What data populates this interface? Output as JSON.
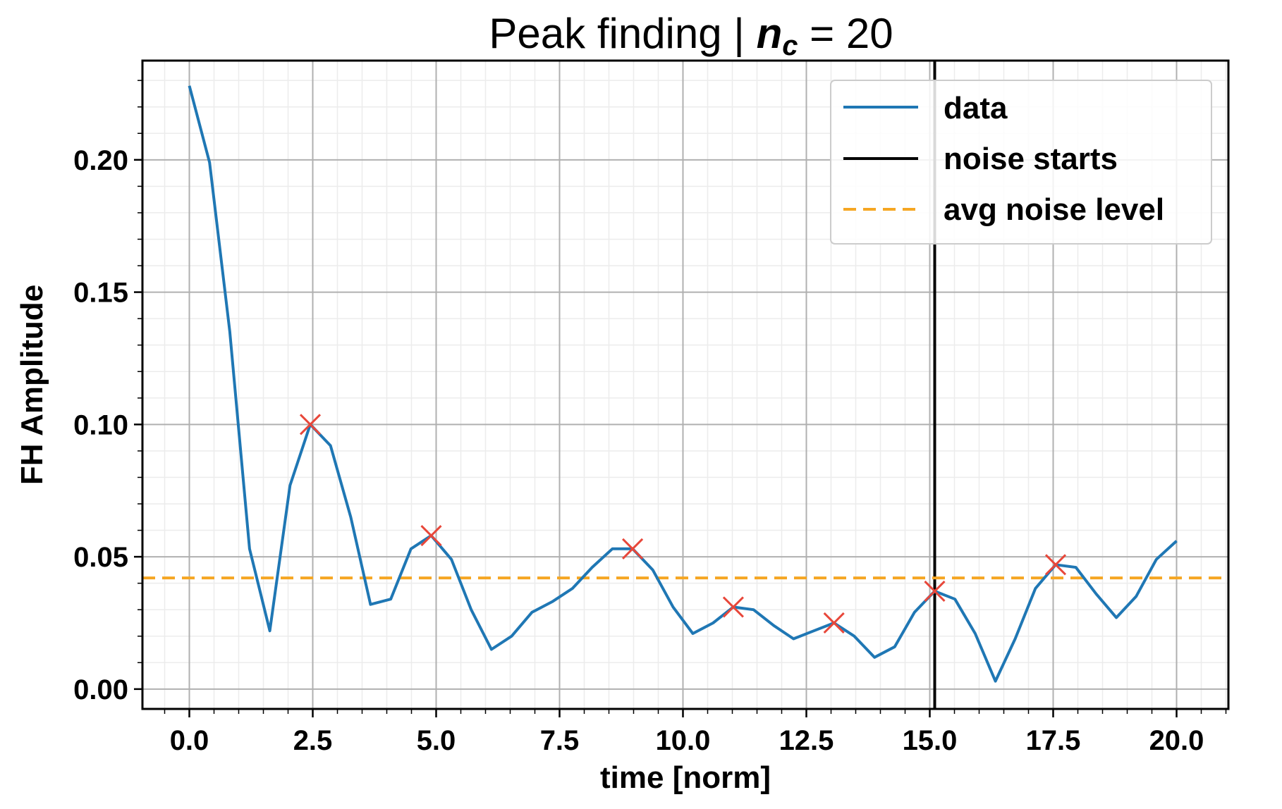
{
  "chart_data": {
    "type": "line",
    "title": "Peak finding | ",
    "title_symbol": "n",
    "title_subscript": "c",
    "title_suffix": " = 20",
    "xlabel": "time [norm]",
    "ylabel": "FH Amplitude",
    "xlim": [
      -0.95,
      21.05
    ],
    "ylim": [
      -0.0075,
      0.2375
    ],
    "xticks": [
      0.0,
      2.5,
      5.0,
      7.5,
      10.0,
      12.5,
      15.0,
      17.5,
      20.0
    ],
    "xtick_labels": [
      "0.0",
      "2.5",
      "5.0",
      "7.5",
      "10.0",
      "12.5",
      "15.0",
      "17.5",
      "20.0"
    ],
    "yticks": [
      0.0,
      0.05,
      0.1,
      0.15,
      0.2
    ],
    "ytick_labels": [
      "0.00",
      "0.05",
      "0.10",
      "0.15",
      "0.20"
    ],
    "grid": true,
    "minor_grid": true,
    "legend_position": "top-right",
    "series": [
      {
        "name": "data",
        "color": "#1f77b4",
        "x": [
          0.0,
          0.41,
          0.82,
          1.22,
          1.63,
          2.04,
          2.45,
          2.86,
          3.27,
          3.67,
          4.08,
          4.49,
          4.9,
          5.31,
          5.71,
          6.12,
          6.53,
          6.94,
          7.35,
          7.76,
          8.16,
          8.57,
          8.98,
          9.39,
          9.8,
          10.2,
          10.61,
          11.02,
          11.43,
          11.84,
          12.24,
          12.65,
          13.06,
          13.47,
          13.88,
          14.29,
          14.69,
          15.1,
          15.51,
          15.92,
          16.33,
          16.73,
          17.14,
          17.55,
          17.96,
          18.37,
          18.78,
          19.18,
          19.59,
          20.0
        ],
        "y": [
          0.228,
          0.199,
          0.135,
          0.053,
          0.022,
          0.077,
          0.1,
          0.092,
          0.065,
          0.032,
          0.034,
          0.053,
          0.058,
          0.049,
          0.03,
          0.015,
          0.02,
          0.029,
          0.033,
          0.038,
          0.046,
          0.053,
          0.053,
          0.045,
          0.031,
          0.021,
          0.025,
          0.031,
          0.03,
          0.024,
          0.019,
          0.022,
          0.025,
          0.02,
          0.012,
          0.016,
          0.029,
          0.037,
          0.034,
          0.021,
          0.003,
          0.019,
          0.038,
          0.047,
          0.046,
          0.036,
          0.027,
          0.035,
          0.049,
          0.056
        ]
      },
      {
        "name": "noise starts",
        "color": "#000000",
        "kind": "vline",
        "x": 15.1
      },
      {
        "name": "avg noise level",
        "color": "#f5a623",
        "kind": "hline",
        "y": 0.042
      }
    ],
    "peaks": {
      "color": "#e8473a",
      "x": [
        2.45,
        4.9,
        8.98,
        11.02,
        13.06,
        15.1,
        17.55
      ],
      "y": [
        0.1,
        0.058,
        0.053,
        0.031,
        0.025,
        0.037,
        0.047
      ]
    }
  }
}
